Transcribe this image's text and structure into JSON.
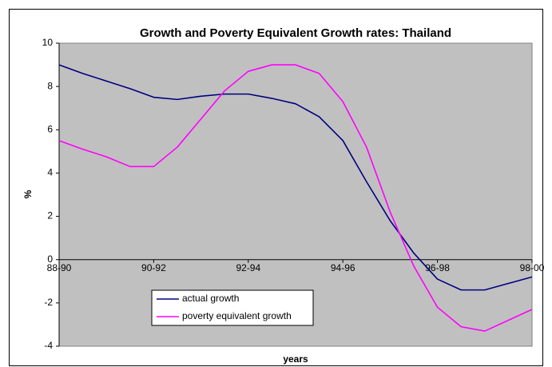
{
  "chart_data": {
    "type": "line",
    "title": "Growth and Poverty Equivalent Growth rates: Thailand",
    "x_label": "years",
    "y_label": "%",
    "categories": [
      "88-90",
      null,
      null,
      null,
      "90-92",
      null,
      null,
      null,
      "92-94",
      null,
      null,
      null,
      "94-96",
      null,
      null,
      null,
      "96-98",
      null,
      null,
      null,
      "98-00"
    ],
    "series": [
      {
        "name": "actual growth",
        "color": "#000080",
        "values": [
          9.0,
          8.6,
          8.25,
          7.9,
          7.5,
          7.4,
          7.55,
          7.65,
          7.65,
          7.45,
          7.2,
          6.6,
          5.5,
          3.6,
          1.8,
          0.3,
          -0.9,
          -1.4,
          -1.4,
          -1.1,
          -0.8
        ]
      },
      {
        "name": "poverty equivalent growth",
        "color": "#ff00ff",
        "values": [
          5.5,
          5.1,
          4.75,
          4.3,
          4.3,
          5.2,
          6.5,
          7.8,
          8.7,
          9.0,
          9.0,
          8.6,
          7.3,
          5.2,
          2.2,
          -0.3,
          -2.2,
          -3.1,
          -3.3,
          -2.8,
          -2.3
        ]
      }
    ],
    "ylim": [
      -4,
      10
    ],
    "yticks": [
      -4,
      -2,
      0,
      2,
      4,
      6,
      8,
      10
    ],
    "grid": false
  }
}
